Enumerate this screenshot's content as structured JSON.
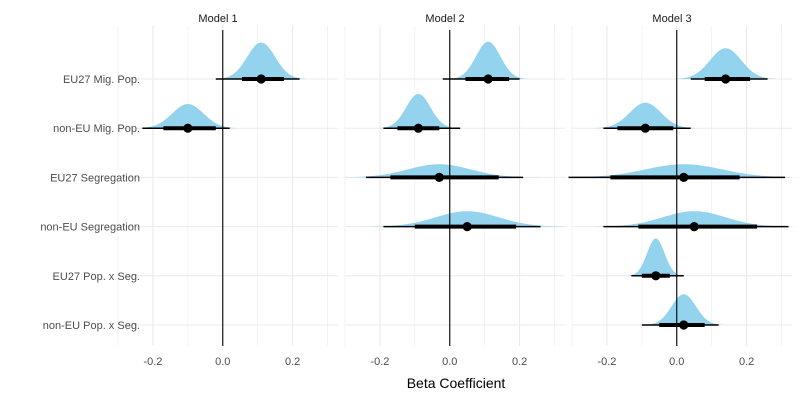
{
  "chart_data": {
    "type": "halfeye",
    "xlabel": "Beta Coefficient",
    "ylabel": "",
    "xlim": [
      -0.3,
      0.33
    ],
    "xticks": [
      -0.2,
      0.0,
      0.2
    ],
    "xtick_labels": [
      "-0.2",
      "0.0",
      "0.2"
    ],
    "reference_line": 0,
    "grid": true,
    "fill_color": "#94d3ee",
    "point_color": "#000000",
    "categories": [
      "EU27 Mig. Pop.",
      "non-EU Mig. Pop.",
      "EU27 Segregation",
      "non-EU Segregation",
      "EU27 Pop. x Seg.",
      "non-EU Pop. x Seg."
    ],
    "panels": [
      {
        "title": "Model 1",
        "estimates": [
          {
            "term": "EU27 Mig. Pop.",
            "mean": 0.11,
            "sd": 0.04,
            "ci66": [
              0.055,
              0.175
            ],
            "ci95": [
              -0.02,
              0.22
            ],
            "density_height": 0.83
          },
          {
            "term": "non-EU Mig. Pop.",
            "mean": -0.1,
            "sd": 0.045,
            "ci66": [
              -0.17,
              -0.02
            ],
            "ci95": [
              -0.23,
              0.02
            ],
            "density_height": 0.55
          }
        ]
      },
      {
        "title": "Model 2",
        "estimates": [
          {
            "term": "EU27 Mig. Pop.",
            "mean": 0.11,
            "sd": 0.035,
            "ci66": [
              0.045,
              0.17
            ],
            "ci95": [
              -0.02,
              0.2
            ],
            "density_height": 0.85
          },
          {
            "term": "non-EU Mig. Pop.",
            "mean": -0.09,
            "sd": 0.035,
            "ci66": [
              -0.15,
              -0.03
            ],
            "ci95": [
              -0.19,
              0.03
            ],
            "density_height": 0.78
          },
          {
            "term": "EU27 Segregation",
            "mean": -0.03,
            "sd": 0.09,
            "ci66": [
              -0.17,
              0.14
            ],
            "ci95": [
              -0.24,
              0.21
            ],
            "density_height": 0.3
          },
          {
            "term": "non-EU Segregation",
            "mean": 0.05,
            "sd": 0.09,
            "ci66": [
              -0.1,
              0.19
            ],
            "ci95": [
              -0.19,
              0.26
            ],
            "density_height": 0.35
          }
        ]
      },
      {
        "title": "Model 3",
        "estimates": [
          {
            "term": "EU27 Mig. Pop.",
            "mean": 0.14,
            "sd": 0.045,
            "ci66": [
              0.08,
              0.21
            ],
            "ci95": [
              0.04,
              0.26
            ],
            "density_height": 0.7
          },
          {
            "term": "non-EU Mig. Pop.",
            "mean": -0.09,
            "sd": 0.045,
            "ci66": [
              -0.17,
              -0.01
            ],
            "ci95": [
              -0.21,
              0.04
            ],
            "density_height": 0.58
          },
          {
            "term": "EU27 Segregation",
            "mean": 0.02,
            "sd": 0.11,
            "ci66": [
              -0.19,
              0.18
            ],
            "ci95": [
              -0.31,
              0.31
            ],
            "density_height": 0.3
          },
          {
            "term": "non-EU Segregation",
            "mean": 0.05,
            "sd": 0.09,
            "ci66": [
              -0.11,
              0.23
            ],
            "ci95": [
              -0.21,
              0.32
            ],
            "density_height": 0.35
          },
          {
            "term": "EU27 Pop. x Seg.",
            "mean": -0.06,
            "sd": 0.025,
            "ci66": [
              -0.1,
              -0.02
            ],
            "ci95": [
              -0.13,
              0.02
            ],
            "density_height": 0.85
          },
          {
            "term": "non-EU Pop. x Seg.",
            "mean": 0.02,
            "sd": 0.035,
            "ci66": [
              -0.05,
              0.08
            ],
            "ci95": [
              -0.1,
              0.12
            ],
            "density_height": 0.7
          }
        ]
      }
    ]
  }
}
